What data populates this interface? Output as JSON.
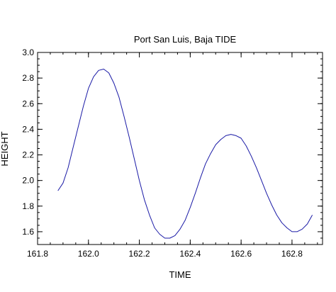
{
  "chart_data": {
    "type": "line",
    "title": "Port San Luis, Baja TIDE",
    "xlabel": "TIME",
    "ylabel": "HEIGHT",
    "xlim": [
      161.8,
      162.92
    ],
    "ylim": [
      1.5,
      3.0
    ],
    "xticks": [
      161.8,
      162.0,
      162.2,
      162.4,
      162.6,
      162.8
    ],
    "xtick_labels": [
      "161.8",
      "162.0",
      "162.2",
      "162.4",
      "162.6",
      "162.8"
    ],
    "yticks": [
      1.6,
      1.8,
      2.0,
      2.2,
      2.4,
      2.6,
      2.8,
      3.0
    ],
    "ytick_labels": [
      "1.6",
      "1.8",
      "2.0",
      "2.2",
      "2.4",
      "2.6",
      "2.8",
      "3.0"
    ],
    "grid": false,
    "legend": "none",
    "line_color": "#1a1aa6",
    "series": [
      {
        "x": [
          161.88,
          161.9,
          161.92,
          161.94,
          161.96,
          161.98,
          162.0,
          162.02,
          162.04,
          162.06,
          162.08,
          162.1,
          162.12,
          162.14,
          162.16,
          162.18,
          162.2,
          162.22,
          162.24,
          162.26,
          162.28,
          162.3,
          162.32,
          162.34,
          162.36,
          162.38,
          162.4,
          162.42,
          162.44,
          162.46,
          162.48,
          162.5,
          162.52,
          162.54,
          162.56,
          162.58,
          162.6,
          162.62,
          162.64,
          162.66,
          162.68,
          162.7,
          162.72,
          162.74,
          162.76,
          162.78,
          162.8,
          162.82,
          162.84,
          162.86,
          162.88
        ],
        "values": [
          1.92,
          1.98,
          2.1,
          2.26,
          2.42,
          2.58,
          2.72,
          2.81,
          2.86,
          2.87,
          2.84,
          2.76,
          2.65,
          2.5,
          2.34,
          2.17,
          2.0,
          1.85,
          1.73,
          1.63,
          1.58,
          1.55,
          1.55,
          1.57,
          1.62,
          1.69,
          1.79,
          1.9,
          2.02,
          2.13,
          2.21,
          2.28,
          2.32,
          2.35,
          2.36,
          2.35,
          2.33,
          2.27,
          2.19,
          2.1,
          2.0,
          1.9,
          1.81,
          1.73,
          1.67,
          1.63,
          1.6,
          1.6,
          1.62,
          1.66,
          1.73
        ]
      }
    ]
  }
}
